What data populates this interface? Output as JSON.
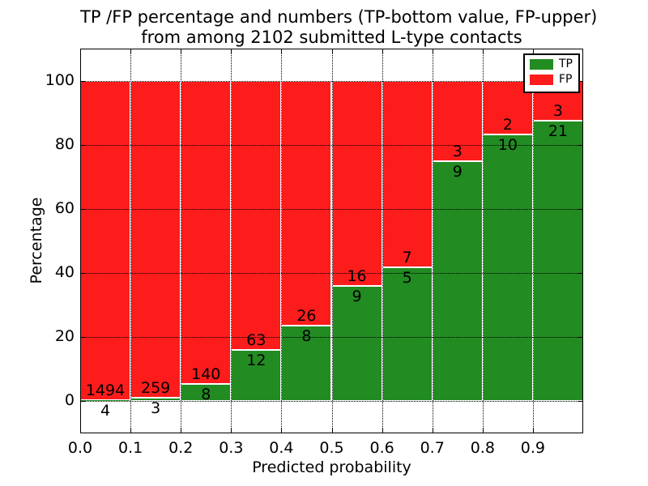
{
  "title": {
    "line1": "TP /FP percentage and numbers (TP-bottom value, FP-upper)",
    "line2": "from among 2102 submitted L-type contacts"
  },
  "total_contacts": "2102",
  "chart_data": {
    "type": "bar",
    "stacked": true,
    "normalized": "percent_of_bin_total",
    "title": "TP /FP percentage and numbers (TP-bottom value, FP-upper) from among 2102 submitted L-type contacts",
    "xlabel": "Predicted probability",
    "ylabel": "Percentage",
    "xlim": [
      0.0,
      1.0
    ],
    "ylim": [
      -10,
      110
    ],
    "bin_width": 0.1,
    "xticks": [
      "0.0",
      "0.1",
      "0.2",
      "0.3",
      "0.4",
      "0.5",
      "0.6",
      "0.7",
      "0.8",
      "0.9"
    ],
    "yticks": [
      "0",
      "20",
      "40",
      "60",
      "80",
      "100"
    ],
    "ytick_values": [
      0,
      20,
      40,
      60,
      80,
      100
    ],
    "grid": "dotted",
    "legend_position": "upper right",
    "series": [
      {
        "name": "TP",
        "color": "#228b22"
      },
      {
        "name": "FP",
        "color": "#fc1c1c"
      }
    ],
    "bins": [
      {
        "x_start": 0.0,
        "x_end": 0.1,
        "tp_count": 4,
        "fp_count": 1494,
        "tp_percent": 0.27,
        "fp_percent": 99.73
      },
      {
        "x_start": 0.1,
        "x_end": 0.2,
        "tp_count": 3,
        "fp_count": 259,
        "tp_percent": 1.15,
        "fp_percent": 98.85
      },
      {
        "x_start": 0.2,
        "x_end": 0.3,
        "tp_count": 8,
        "fp_count": 140,
        "tp_percent": 5.41,
        "fp_percent": 94.59
      },
      {
        "x_start": 0.3,
        "x_end": 0.4,
        "tp_count": 12,
        "fp_count": 63,
        "tp_percent": 16.0,
        "fp_percent": 84.0
      },
      {
        "x_start": 0.4,
        "x_end": 0.5,
        "tp_count": 8,
        "fp_count": 26,
        "tp_percent": 23.53,
        "fp_percent": 76.47
      },
      {
        "x_start": 0.5,
        "x_end": 0.6,
        "tp_count": 9,
        "fp_count": 16,
        "tp_percent": 36.0,
        "fp_percent": 64.0
      },
      {
        "x_start": 0.6,
        "x_end": 0.7,
        "tp_count": 5,
        "fp_count": 7,
        "tp_percent": 41.67,
        "fp_percent": 58.33
      },
      {
        "x_start": 0.7,
        "x_end": 0.8,
        "tp_count": 9,
        "fp_count": 3,
        "tp_percent": 75.0,
        "fp_percent": 25.0
      },
      {
        "x_start": 0.8,
        "x_end": 0.9,
        "tp_count": 10,
        "fp_count": 2,
        "tp_percent": 83.33,
        "fp_percent": 16.67
      },
      {
        "x_start": 0.9,
        "x_end": 1.0,
        "tp_count": 21,
        "fp_count": 3,
        "tp_percent": 87.5,
        "fp_percent": 12.5
      }
    ]
  }
}
